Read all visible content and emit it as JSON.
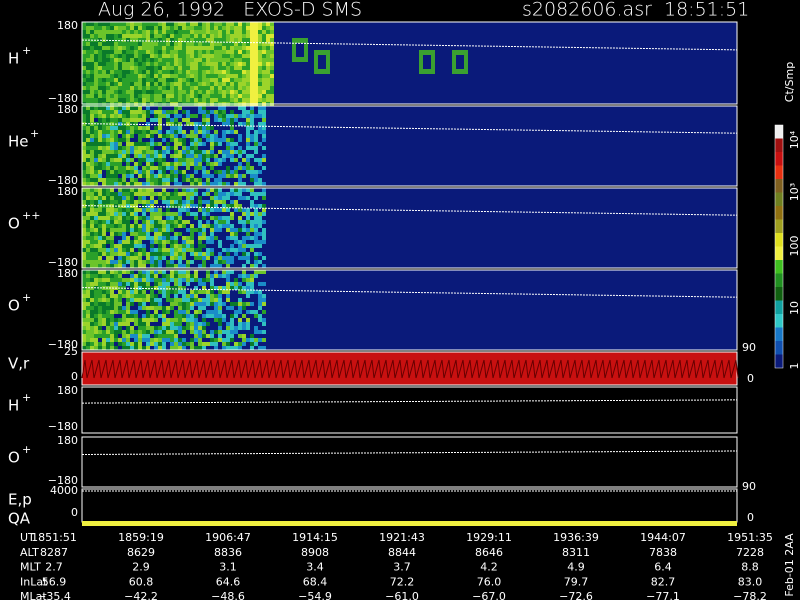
{
  "header": {
    "title": "Aug 26, 1992   EXOS-D SMS",
    "file": "s2082606.asr  18:51:51"
  },
  "panels": [
    {
      "label": "H",
      "sup": "+",
      "top": "180",
      "bottom": "−180"
    },
    {
      "label": "He",
      "sup": "+",
      "top": "180",
      "bottom": "−180"
    },
    {
      "label": "O",
      "sup": "++",
      "top": "180",
      "bottom": "−180"
    },
    {
      "label": "O",
      "sup": "+",
      "top": "180",
      "bottom": "−180"
    }
  ],
  "velocity": {
    "label": "V,r",
    "top": "25",
    "bottom": "0",
    "right_top": "90",
    "right_bottom": "0"
  },
  "line_panels": [
    {
      "label": "H",
      "sup": "+",
      "top": "180",
      "bottom": "−180"
    },
    {
      "label": "O",
      "sup": "+",
      "top": "180",
      "bottom": "−180"
    }
  ],
  "energy": {
    "label": "E,p",
    "top": "4000",
    "bottom": "0",
    "right_top": "90",
    "right_bottom": "0",
    "qa": "QA"
  },
  "colorbar": {
    "title": "Ct/Smp",
    "labels": [
      "10⁴",
      "10³",
      "100",
      "10",
      "1"
    ]
  },
  "ephemeris": {
    "rows": [
      {
        "name": "UT",
        "values": [
          "1851:51",
          "1859:19",
          "1906:47",
          "1914:15",
          "1921:43",
          "1929:11",
          "1936:39",
          "1944:07",
          "1951:35"
        ]
      },
      {
        "name": "ALT",
        "values": [
          "8287",
          "8629",
          "8836",
          "8908",
          "8844",
          "8646",
          "8311",
          "7838",
          "7228"
        ]
      },
      {
        "name": "MLT",
        "values": [
          "2.7",
          "2.9",
          "3.1",
          "3.4",
          "3.7",
          "4.2",
          "4.9",
          "6.4",
          "8.8"
        ]
      },
      {
        "name": "InLat",
        "values": [
          "56.9",
          "60.8",
          "64.6",
          "68.4",
          "72.2",
          "76.0",
          "79.7",
          "82.7",
          "83.0"
        ]
      },
      {
        "name": "MLat",
        "values": [
          "−35.4",
          "−42.2",
          "−48.6",
          "−54.9",
          "−61.0",
          "−67.0",
          "−72.6",
          "−77.1",
          "−78.2"
        ]
      }
    ]
  },
  "footer": "Feb-01 2AA"
}
